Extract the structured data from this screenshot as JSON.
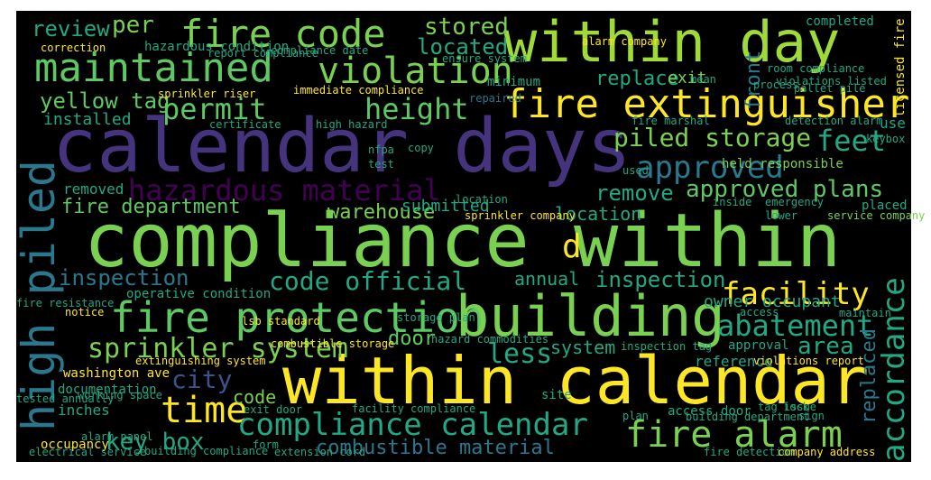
{
  "words": [
    "calendar days",
    "compliance within",
    "within calendar",
    "within day",
    "fire protection",
    "building",
    "fire extinguisher",
    "maintained",
    "violation",
    "fire code",
    "high piled",
    "hazardous material",
    "approved",
    "approved plans",
    "permit",
    "height",
    "stored",
    "located",
    "review",
    "per",
    "yellow tag",
    "installed",
    "piled storage",
    "feet",
    "replace",
    "exit",
    "front",
    "remove",
    "warehouse",
    "submitted",
    "location",
    "fire department",
    "removed",
    "d",
    "inspection",
    "code official",
    "annual",
    "inspection",
    "facility",
    "abatement",
    "accordance",
    "replaced",
    "sprinkler system",
    "door",
    "less",
    "system",
    "area",
    "city",
    "time",
    "code",
    "compliance calendar",
    "fire alarm",
    "key box",
    "combustible material",
    "washington ave",
    "documentation",
    "inches",
    "occupancy",
    "reference",
    "approval",
    "owner occupant",
    "held responsible",
    "use",
    "completed",
    "placed",
    "licensed fire",
    "correction",
    "hazardous condition",
    "compliance date",
    "minimum",
    "repaired",
    "operative condition",
    "certificate",
    "nfpa",
    "copy",
    "test",
    "used",
    "emergency",
    "service company",
    "sprinkler company",
    "sprinkler riser",
    "notice",
    "alarm panel",
    "exit door",
    "facility compliance",
    "access door",
    "building compliance",
    "form",
    "site",
    "maintain",
    "access",
    "fire marshal",
    "violations listed",
    "pallet pile",
    "room compliance",
    "alarm company",
    "ensure system",
    "report compliance",
    "immediate compliance",
    "high hazard",
    "detection alarm",
    "lsb standard",
    "combustible storage",
    "storage plan",
    "hazard commodities",
    "extinguishing system",
    "violations report",
    "building department",
    "fire detection",
    "company address",
    "electrical service",
    "extension cord",
    "tested annually",
    "fire resistance",
    "working space",
    "inspection tag",
    "tag issue",
    "lower",
    "inside",
    "location",
    "keybox",
    "plan",
    "sign",
    "process",
    "mean",
    "lock"
  ]
}
